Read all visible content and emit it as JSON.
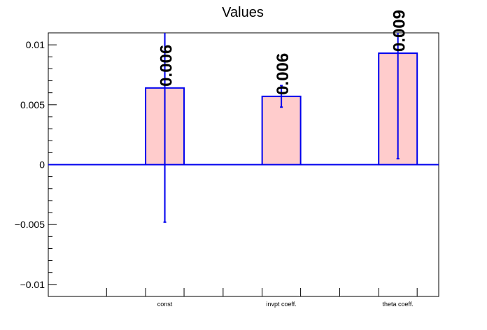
{
  "chart_data": {
    "type": "bar",
    "title": "Values",
    "xlabel": "",
    "ylabel": "",
    "categories": [
      "const",
      "invpt coeff.",
      "theta coeff."
    ],
    "values": [
      0.0064,
      0.0057,
      0.0093
    ],
    "errors": [
      0.0112,
      0.0009,
      0.0088
    ],
    "data_labels": [
      "0.006",
      "0.006",
      "0.009"
    ],
    "ylim": [
      -0.011,
      0.011
    ],
    "yticks": [
      -0.01,
      -0.005,
      0,
      0.005,
      0.01
    ],
    "ytick_labels": [
      "−0.01",
      "−0.005",
      "0",
      "0.005",
      "0.01"
    ],
    "grid": false,
    "colors": {
      "bar_fill": "#ffcccc",
      "bar_edge": "#0000ee",
      "axis": "#000000"
    }
  }
}
